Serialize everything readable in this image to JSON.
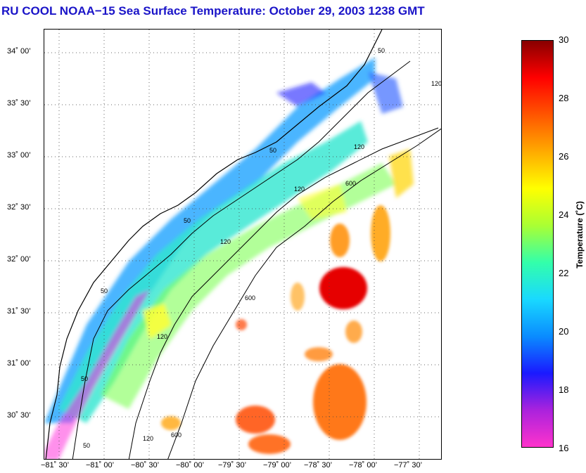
{
  "title": "RU COOL  NOAA−15  Sea Surface Temperature:  October 29, 2003 1238 GMT",
  "map": {
    "lat_ticks": [
      "34˚ 00’",
      "33˚ 30’",
      "33˚ 00’",
      "32˚ 30’",
      "32˚ 00’",
      "31˚ 30’",
      "31˚ 00’",
      "30˚ 30’"
    ],
    "lon_ticks": [
      "−81˚ 30’",
      "−81˚ 00’",
      "−80˚ 30’",
      "−80˚ 00’",
      "−79˚ 30’",
      "−79˚ 00’",
      "−78˚ 30’",
      "−78˚ 00’",
      "−77˚ 30’"
    ],
    "contour_labels": {
      "c50": "50",
      "c120": "120",
      "c600": "600"
    }
  },
  "colorbar": {
    "ticks": [
      "30",
      "28",
      "26",
      "24",
      "22",
      "20",
      "18",
      "16"
    ],
    "label": "Temperature (˚C)",
    "min": 16,
    "max": 30,
    "colors": [
      "#ff33cc",
      "#aa22dd",
      "#1a1aff",
      "#0a8cff",
      "#19d9ff",
      "#33ffaa",
      "#aaff33",
      "#ffff00",
      "#ffaa00",
      "#ff5500",
      "#ff0000",
      "#880000"
    ]
  }
}
